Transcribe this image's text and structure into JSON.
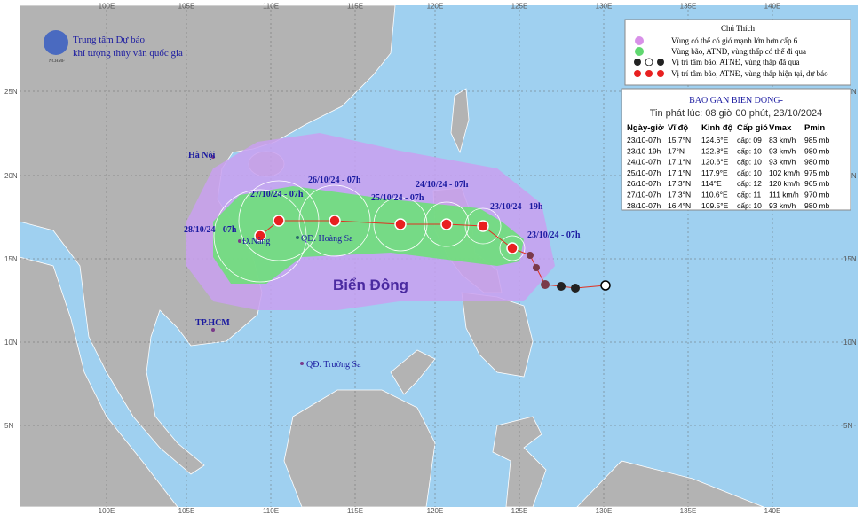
{
  "agency": {
    "line1": "Trung tâm Dự báo",
    "line2": "khí tượng thủy văn quốc gia",
    "logo": "NCHMF"
  },
  "legend": {
    "title": "Chú Thích",
    "items": [
      "Vùng có thể có gió mạnh lớn hơn cấp 6",
      "Vùng bão, ATNĐ, vùng thấp có thể đi qua",
      "Vị trí tâm bão, ATNĐ, vùng thấp đã qua",
      "Vị trí tâm bão, ATNĐ, vùng thấp hiện tại, dự báo"
    ]
  },
  "bulletin": {
    "title": "BAO GAN BIEN DONG-",
    "issued": "Tin phát lúc: 08 giờ 00 phút, 23/10/2024",
    "table": {
      "header": [
        "Ngày-giờ",
        "Vĩ độ",
        "Kinh độ",
        "Cấp gió",
        "Vmax",
        "Pmin"
      ],
      "rows": [
        [
          "23/10-07h",
          "15.7°N",
          "124.6°E",
          "cấp: 09",
          "83 km/h",
          "985 mb"
        ],
        [
          "23/10-19h",
          "17°N",
          "122.8°E",
          "cấp: 10",
          "93 km/h",
          "980 mb"
        ],
        [
          "24/10-07h",
          "17.1°N",
          "120.6°E",
          "cấp: 10",
          "93 km/h",
          "980 mb"
        ],
        [
          "25/10-07h",
          "17.1°N",
          "117.9°E",
          "cấp: 10",
          "102 km/h",
          "975 mb"
        ],
        [
          "26/10-07h",
          "17.3°N",
          "114°E",
          "cấp: 12",
          "120 km/h",
          "965 mb"
        ],
        [
          "27/10-07h",
          "17.3°N",
          "110.6°E",
          "cấp: 11",
          "111 km/h",
          "970 mb"
        ],
        [
          "28/10-07h",
          "16.4°N",
          "109.5°E",
          "cấp: 10",
          "93 km/h",
          "980 mb"
        ]
      ]
    }
  },
  "map": {
    "places": [
      "Hà Nội",
      "Đ.Nẵng",
      "QĐ. Hoàng Sa",
      "TP.HCM",
      "QĐ. Trường Sa",
      "Biển Đông"
    ],
    "times": [
      "23/10/24 - 07h",
      "23/10/24 - 19h",
      "24/10/24 - 07h",
      "25/10/24 - 07h",
      "26/10/24 - 07h",
      "27/10/24 - 07h",
      "28/10/24 - 07h"
    ],
    "lon_labels": [
      "100E",
      "105E",
      "110E",
      "115E",
      "120E",
      "125E",
      "130E",
      "135E",
      "140E"
    ],
    "lat_labels": [
      "25N",
      "20N",
      "15N",
      "10N",
      "5N"
    ]
  }
}
